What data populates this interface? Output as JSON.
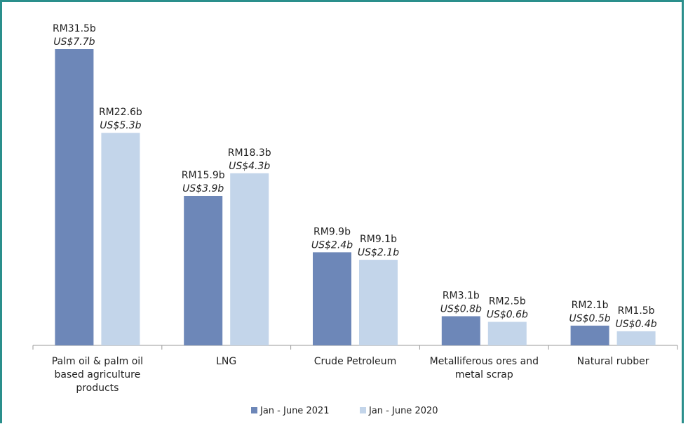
{
  "chart_data": {
    "type": "bar",
    "categories": [
      [
        "Palm oil & palm oil",
        "based agriculture",
        "products"
      ],
      [
        "LNG"
      ],
      [
        "Crude Petroleum"
      ],
      [
        "Metalliferous ores and",
        "metal scrap"
      ],
      [
        "Natural rubber"
      ]
    ],
    "series": [
      {
        "name": "Jan - June 2021",
        "color": "#6d87b8",
        "values": [
          31.5,
          15.9,
          9.9,
          3.1,
          2.1
        ],
        "labels_rm": [
          "RM31.5b",
          "RM15.9b",
          "RM9.9b",
          "RM3.1b",
          "RM2.1b"
        ],
        "labels_us": [
          "US$7.7b",
          "US$3.9b",
          "US$2.4b",
          "US$0.8b",
          "US$0.5b"
        ]
      },
      {
        "name": "Jan - June 2020",
        "color": "#c3d5ea",
        "values": [
          22.6,
          18.3,
          9.1,
          2.5,
          1.5
        ],
        "labels_rm": [
          "RM22.6b",
          "RM18.3b",
          "RM9.1b",
          "RM2.5b",
          "RM1.5b"
        ],
        "labels_us": [
          "US$5.3b",
          "US$4.3b",
          "US$2.1b",
          "US$0.6b",
          "US$0.4b"
        ]
      }
    ],
    "ylim": [
      0,
      32
    ],
    "grid": false,
    "legend": "bottom",
    "title": "",
    "xlabel": "",
    "ylabel": ""
  }
}
